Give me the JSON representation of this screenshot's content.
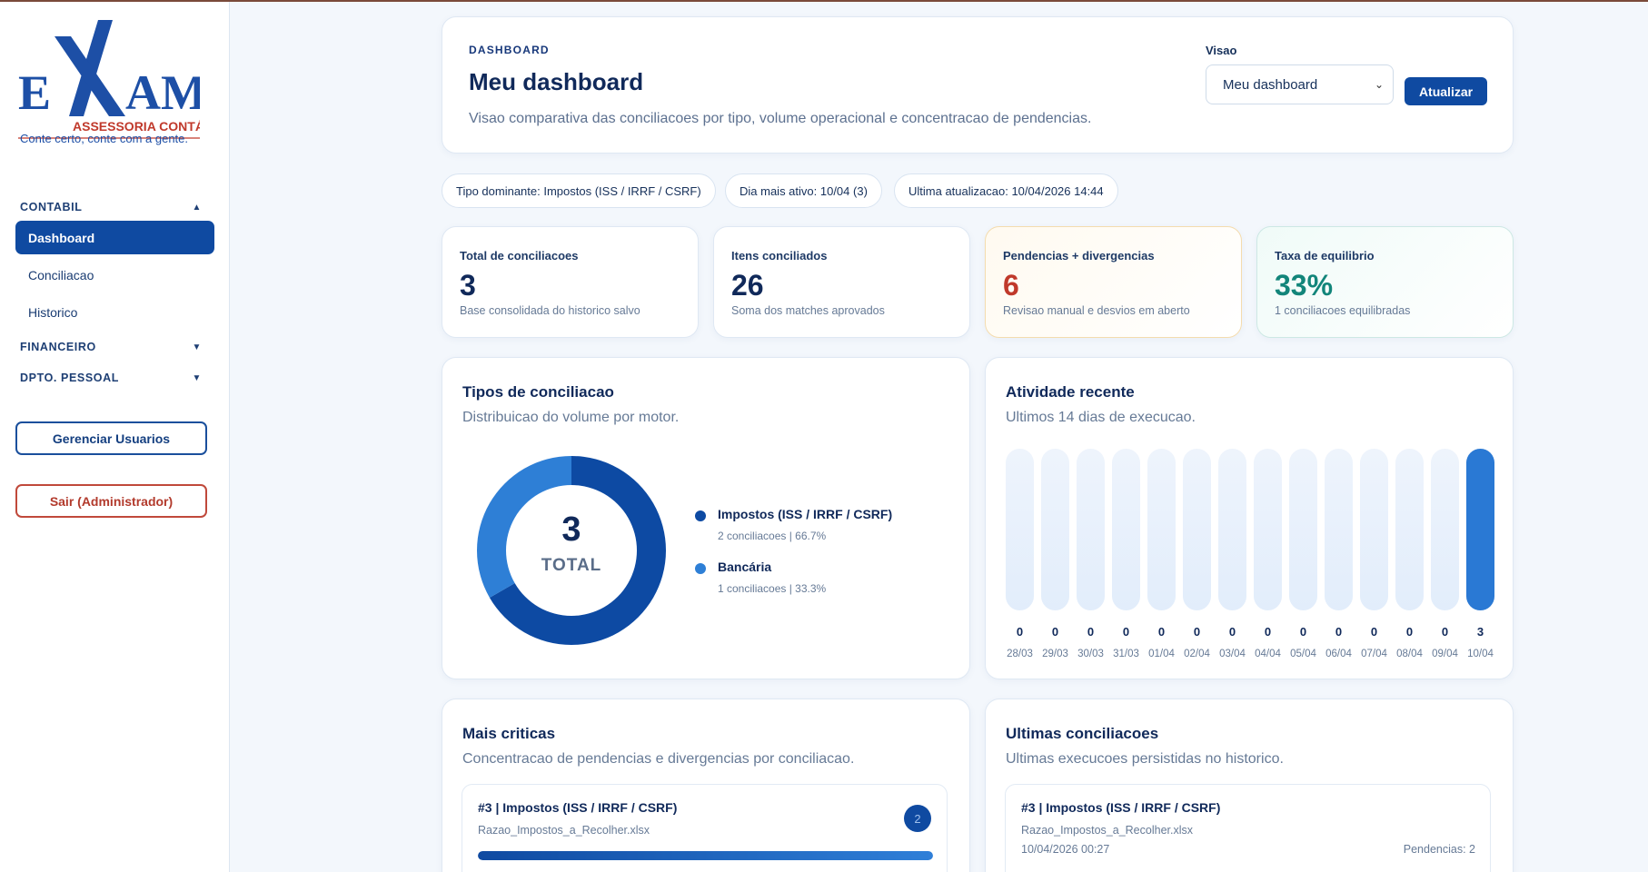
{
  "brand": {
    "logo_word": "EXAM",
    "logo_sub": "ASSESSORIA CONTÁBIL",
    "tagline": "Conte certo, conte com a gente."
  },
  "sidebar": {
    "sections": [
      {
        "label": "CONTABIL",
        "expanded": true
      },
      {
        "label": "FINANCEIRO",
        "expanded": false
      },
      {
        "label": "DPTO. PESSOAL",
        "expanded": false
      }
    ],
    "items": [
      {
        "label": "Dashboard",
        "active": true
      },
      {
        "label": "Conciliacao",
        "active": false
      },
      {
        "label": "Historico",
        "active": false
      }
    ],
    "caret_up": "▲",
    "caret_down": "▼",
    "manage_users": "Gerenciar Usuarios",
    "logout": "Sair (Administrador)"
  },
  "header": {
    "eyebrow": "DASHBOARD",
    "title": "Meu dashboard",
    "description": "Visao comparativa das conciliacoes por tipo, volume operacional e concentracao de pendencias.",
    "view_label": "Visao",
    "view_selected": "Meu dashboard",
    "refresh_label": "Atualizar"
  },
  "chips": [
    "Tipo dominante: Impostos (ISS / IRRF / CSRF)",
    "Dia mais ativo: 10/04 (3)",
    "Ultima atualizacao: 10/04/2026 14:44"
  ],
  "stats": [
    {
      "label": "Total de conciliacoes",
      "value": "3",
      "sub": "Base consolidada do historico salvo",
      "color": "#10295a"
    },
    {
      "label": "Itens conciliados",
      "value": "26",
      "sub": "Soma dos matches aprovados",
      "color": "#10295a"
    },
    {
      "label": "Pendencias + divergencias",
      "value": "6",
      "sub": "Revisao manual e desvios em aberto",
      "color": "#c0392b"
    },
    {
      "label": "Taxa de equilibrio",
      "value": "33%",
      "sub": "1 conciliacoes equilibradas",
      "color": "#12857a"
    }
  ],
  "types_panel": {
    "title": "Tipos de conciliacao",
    "subtitle": "Distribuicao do volume por motor.",
    "center_value": "3",
    "center_label": "TOTAL",
    "legend": [
      {
        "name": "Impostos (ISS / IRRF / CSRF)",
        "meta": "2 conciliacoes | 66.7%",
        "color": "#0d4aa3"
      },
      {
        "name": "Bancária",
        "meta": "1 conciliacoes | 33.3%",
        "color": "#2e7fd6"
      }
    ]
  },
  "chart_data": {
    "type": "pie",
    "categories": [
      "Impostos (ISS / IRRF / CSRF)",
      "Bancária"
    ],
    "values": [
      2,
      1
    ],
    "colors": [
      "#0d4aa3",
      "#2e7fd6"
    ],
    "title": "Tipos de conciliacao",
    "style": "donut"
  },
  "activity_panel": {
    "title": "Atividade recente",
    "subtitle": "Ultimos 14 dias de execucao.",
    "bar_chart": {
      "type": "bar",
      "categories": [
        "28/03",
        "29/03",
        "30/03",
        "31/03",
        "01/04",
        "02/04",
        "03/04",
        "04/04",
        "05/04",
        "06/04",
        "07/04",
        "08/04",
        "09/04",
        "10/04"
      ],
      "values": [
        0,
        0,
        0,
        0,
        0,
        0,
        0,
        0,
        0,
        0,
        0,
        0,
        0,
        3
      ]
    }
  },
  "critical_panel": {
    "title": "Mais criticas",
    "subtitle": "Concentracao de pendencias e divergencias por conciliacao.",
    "items": [
      {
        "title": "#3 | Impostos (ISS / IRRF / CSRF)",
        "file": "Razao_Impostos_a_Recolher.xlsx",
        "badge": "2",
        "progress": 1.0
      }
    ]
  },
  "recent_panel": {
    "title": "Ultimas conciliacoes",
    "subtitle": "Ultimas execucoes persistidas no historico.",
    "items": [
      {
        "title": "#3 | Impostos (ISS / IRRF / CSRF)",
        "file": "Razao_Impostos_a_Recolher.xlsx",
        "date": "10/04/2026 00:27",
        "pending": "Pendencias: 2"
      }
    ]
  }
}
